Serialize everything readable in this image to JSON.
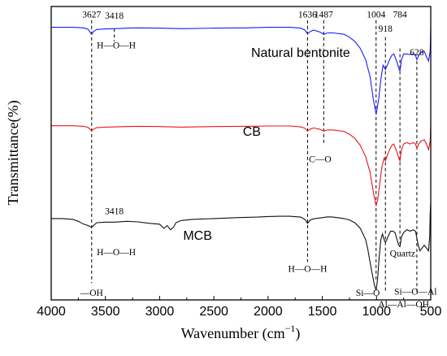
{
  "chart_data": {
    "type": "line",
    "xlabel": "Wavenumber (cm",
    "xlabel_sup": "−1",
    "xlabel_end": ")",
    "ylabel": "Transmittance(%)",
    "x_reversed": true,
    "xlim": [
      4000,
      500
    ],
    "ylim": [
      0,
      1
    ],
    "grid": false,
    "x_ticks": [
      4000,
      3500,
      3000,
      2500,
      2000,
      1500,
      1000,
      500
    ],
    "x_tick_labels": [
      "4000",
      "3500",
      "3000",
      "2500",
      "2000",
      "1500",
      "1000",
      "500"
    ],
    "series": [
      {
        "name": "Natural bentonite",
        "color": "#1a1aff",
        "label_x": 1700,
        "label_y": 0.85,
        "x": [
          4000,
          3900,
          3800,
          3700,
          3660,
          3640,
          3627,
          3610,
          3580,
          3500,
          3418,
          3300,
          3200,
          3000,
          2800,
          2500,
          2200,
          2000,
          1800,
          1700,
          1660,
          1636,
          1610,
          1580,
          1520,
          1487,
          1450,
          1400,
          1300,
          1250,
          1200,
          1150,
          1100,
          1060,
          1030,
          1004,
          980,
          960,
          940,
          918,
          900,
          880,
          860,
          840,
          810,
          795,
          784,
          770,
          750,
          720,
          690,
          660,
          640,
          628,
          610,
          590,
          560,
          540,
          520,
          505,
          500
        ],
        "y": [
          0.955,
          0.955,
          0.955,
          0.953,
          0.948,
          0.937,
          0.93,
          0.94,
          0.947,
          0.949,
          0.95,
          0.952,
          0.953,
          0.952,
          0.95,
          0.952,
          0.953,
          0.955,
          0.955,
          0.952,
          0.945,
          0.932,
          0.94,
          0.945,
          0.938,
          0.93,
          0.935,
          0.935,
          0.93,
          0.92,
          0.905,
          0.88,
          0.84,
          0.78,
          0.7,
          0.645,
          0.7,
          0.77,
          0.82,
          0.805,
          0.82,
          0.84,
          0.855,
          0.86,
          0.83,
          0.81,
          0.8,
          0.84,
          0.86,
          0.86,
          0.858,
          0.86,
          0.855,
          0.84,
          0.855,
          0.865,
          0.87,
          0.85,
          0.835,
          0.87,
          0.955
        ]
      },
      {
        "name": "CB",
        "color": "#e8141a",
        "label_x": 2150,
        "label_y": 0.57,
        "x": [
          4000,
          3900,
          3800,
          3700,
          3660,
          3640,
          3627,
          3610,
          3580,
          3500,
          3400,
          3300,
          3200,
          3000,
          2800,
          2500,
          2200,
          2000,
          1800,
          1700,
          1660,
          1636,
          1610,
          1580,
          1520,
          1487,
          1450,
          1400,
          1300,
          1250,
          1200,
          1150,
          1100,
          1060,
          1030,
          1010,
          1004,
          990,
          970,
          950,
          930,
          918,
          900,
          880,
          860,
          840,
          810,
          795,
          784,
          770,
          750,
          720,
          690,
          660,
          640,
          628,
          610,
          590,
          560,
          540,
          520,
          505,
          500
        ],
        "y": [
          0.605,
          0.605,
          0.605,
          0.603,
          0.599,
          0.592,
          0.586,
          0.593,
          0.598,
          0.6,
          0.601,
          0.602,
          0.603,
          0.602,
          0.6,
          0.602,
          0.603,
          0.604,
          0.604,
          0.601,
          0.596,
          0.586,
          0.593,
          0.597,
          0.592,
          0.586,
          0.59,
          0.59,
          0.585,
          0.575,
          0.56,
          0.535,
          0.495,
          0.44,
          0.37,
          0.33,
          0.322,
          0.34,
          0.4,
          0.46,
          0.49,
          0.48,
          0.5,
          0.52,
          0.535,
          0.54,
          0.51,
          0.49,
          0.48,
          0.52,
          0.54,
          0.545,
          0.54,
          0.545,
          0.54,
          0.525,
          0.54,
          0.55,
          0.555,
          0.54,
          0.52,
          0.55,
          0.605
        ]
      },
      {
        "name": "MCB",
        "color": "#111111",
        "label_x": 2650,
        "label_y": 0.2,
        "x": [
          4000,
          3900,
          3800,
          3750,
          3700,
          3660,
          3640,
          3627,
          3610,
          3580,
          3500,
          3418,
          3300,
          3200,
          3100,
          3000,
          2960,
          2930,
          2900,
          2870,
          2850,
          2800,
          2700,
          2500,
          2300,
          2100,
          2000,
          1900,
          1800,
          1700,
          1660,
          1636,
          1610,
          1580,
          1500,
          1450,
          1400,
          1300,
          1250,
          1200,
          1150,
          1100,
          1080,
          1060,
          1040,
          1020,
          1004,
          990,
          975,
          960,
          945,
          930,
          918,
          905,
          890,
          870,
          850,
          830,
          810,
          795,
          784,
          770,
          750,
          720,
          690,
          660,
          640,
          628,
          615,
          600,
          580,
          560,
          540,
          520,
          510,
          505,
          500
        ],
        "y": [
          0.275,
          0.275,
          0.272,
          0.265,
          0.255,
          0.25,
          0.246,
          0.244,
          0.25,
          0.26,
          0.262,
          0.262,
          0.265,
          0.263,
          0.258,
          0.255,
          0.24,
          0.25,
          0.235,
          0.245,
          0.26,
          0.268,
          0.272,
          0.275,
          0.278,
          0.28,
          0.282,
          0.283,
          0.283,
          0.28,
          0.272,
          0.258,
          0.27,
          0.274,
          0.278,
          0.281,
          0.28,
          0.275,
          0.27,
          0.26,
          0.24,
          0.2,
          0.165,
          0.12,
          0.08,
          0.04,
          0.02,
          0.06,
          0.14,
          0.2,
          0.22,
          0.2,
          0.19,
          0.2,
          0.215,
          0.23,
          0.23,
          0.225,
          0.2,
          0.18,
          0.175,
          0.21,
          0.225,
          0.235,
          0.23,
          0.235,
          0.23,
          0.205,
          0.18,
          0.16,
          0.17,
          0.18,
          0.17,
          0.16,
          0.21,
          0.29,
          0.33
        ]
      }
    ],
    "reference_lines": [
      {
        "x": 3627,
        "y_top": 0.98,
        "y_bottom": 0.045
      },
      {
        "x": 3418,
        "y_top": 0.95,
        "y_bottom": 0.905
      },
      {
        "x": 1636,
        "y_top": 0.98,
        "y_bottom": 0.12
      },
      {
        "x": 1487,
        "y_top": 0.98,
        "y_bottom": 0.54
      },
      {
        "x": 1004,
        "y_top": 0.98,
        "y_bottom": 0.055
      },
      {
        "x": 918,
        "y_top": 0.92,
        "y_bottom": 0.015
      },
      {
        "x": 784,
        "y_top": 0.88,
        "y_bottom": 0.185
      },
      {
        "x": 628,
        "y_top": 0.835,
        "y_bottom": 0.015
      }
    ],
    "peak_labels": [
      {
        "text": "3627",
        "x": 3627,
        "y": 0.99,
        "anchor": "middle"
      },
      {
        "text": "3418",
        "x": 3418,
        "y": 0.985,
        "anchor": "middle"
      },
      {
        "text": "1636",
        "x": 1636,
        "y": 0.99,
        "anchor": "middle"
      },
      {
        "text": "1487",
        "x": 1487,
        "y": 0.99,
        "anchor": "middle"
      },
      {
        "text": "1004",
        "x": 1004,
        "y": 0.99,
        "anchor": "middle"
      },
      {
        "text": "918",
        "x": 918,
        "y": 0.94,
        "anchor": "middle"
      },
      {
        "text": "784",
        "x": 784,
        "y": 0.99,
        "anchor": "middle"
      },
      {
        "text": "628",
        "x": 628,
        "y": 0.855,
        "anchor": "middle"
      },
      {
        "text": "3418",
        "x": 3418,
        "y": 0.29,
        "anchor": "middle"
      }
    ],
    "group_labels": [
      {
        "text": "H—O—H",
        "x": 3400,
        "y": 0.88,
        "anchor": "middle"
      },
      {
        "text": "C—O",
        "x": 1520,
        "y": 0.475,
        "anchor": "middle"
      },
      {
        "text": "H—O—H",
        "x": 3400,
        "y": 0.145,
        "anchor": "middle"
      },
      {
        "text": "—OH",
        "x": 3627,
        "y": 0.0,
        "anchor": "middle"
      },
      {
        "text": "H—O—H",
        "x": 1636,
        "y": 0.085,
        "anchor": "middle"
      },
      {
        "text": "Si—O",
        "x": 1080,
        "y": 0.0,
        "anchor": "middle"
      },
      {
        "text": "Quartz",
        "x": 760,
        "y": 0.14,
        "anchor": "middle"
      },
      {
        "text": "Si—O—Al",
        "x": 640,
        "y": 0.005,
        "anchor": "middle"
      },
      {
        "text": "Al—Al—OH",
        "x": 750,
        "y": -0.04,
        "anchor": "middle"
      }
    ]
  }
}
